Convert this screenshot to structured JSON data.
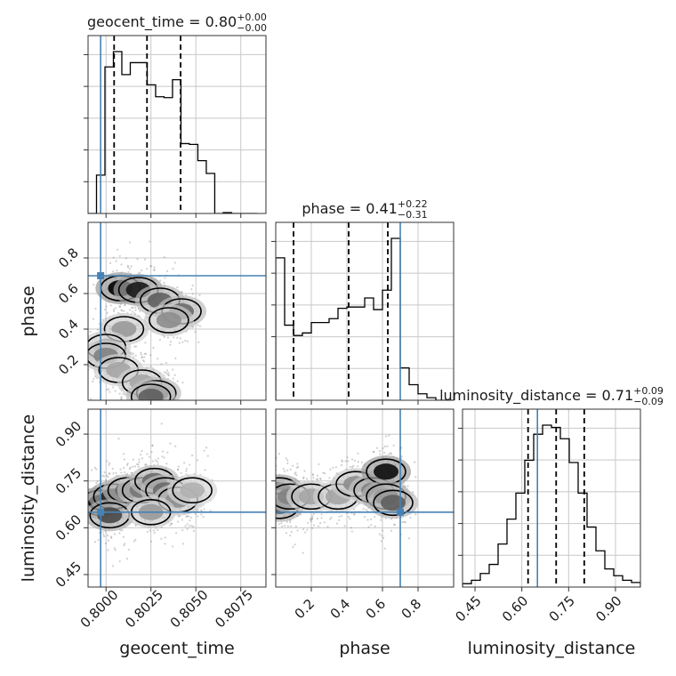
{
  "chart_data": {
    "type": "corner",
    "parameters": [
      "geocent_time",
      "phase",
      "luminosity_distance"
    ],
    "truths": {
      "geocent_time": 0.7997,
      "phase": 0.7,
      "luminosity_distance": 0.65
    },
    "colors": {
      "truth": "#4682b4",
      "hist": "#000000",
      "grid": "#c8c8c8"
    },
    "axes": {
      "geocent_time": {
        "label": "geocent_time",
        "range": [
          0.799,
          0.8089
        ],
        "ticks": [
          0.8,
          0.8025,
          0.805,
          0.8075
        ],
        "tick_labels": [
          "0.8000",
          "0.8025",
          "0.8050",
          "0.8075"
        ]
      },
      "phase": {
        "label": "phase",
        "range": [
          0.0,
          1.0
        ],
        "ticks": [
          0.2,
          0.4,
          0.6,
          0.8
        ],
        "tick_labels": [
          "0.2",
          "0.4",
          "0.6",
          "0.8"
        ]
      },
      "luminosity_distance": {
        "label": "luminosity_distance",
        "range": [
          0.41,
          0.98
        ],
        "ticks": [
          0.45,
          0.6,
          0.75,
          0.9
        ],
        "tick_labels": [
          "0.45",
          "0.60",
          "0.75",
          "0.90"
        ]
      }
    },
    "marginals": [
      {
        "param": "geocent_time",
        "title_name": "geocent_time",
        "median": "0.80",
        "plus": "+0.00",
        "minus": "−0.00",
        "quantiles": [
          0.80045,
          0.80228,
          0.80415
        ],
        "bins": [
          0.799,
          0.79947,
          0.79994,
          0.80041,
          0.80088,
          0.80135,
          0.80182,
          0.80229,
          0.80276,
          0.80323,
          0.8037,
          0.80417,
          0.80464,
          0.80511,
          0.80558,
          0.80605,
          0.80652,
          0.80699,
          0.80746,
          0.80793,
          0.8084
        ],
        "counts": [
          0,
          45,
          172,
          190,
          163,
          177,
          177,
          151,
          137,
          136,
          157,
          82,
          81,
          62,
          47,
          0,
          1,
          0,
          0,
          0
        ]
      },
      {
        "param": "phase",
        "title_name": "phase",
        "median": "0.41",
        "plus": "+0.22",
        "minus": "−0.31",
        "quantiles": [
          0.1,
          0.41,
          0.63
        ],
        "bins": [
          0.0,
          0.05,
          0.1,
          0.15,
          0.2,
          0.25,
          0.3,
          0.35,
          0.4,
          0.45,
          0.5,
          0.55,
          0.6,
          0.65,
          0.7,
          0.75,
          0.8,
          0.85,
          0.9,
          0.95,
          1.0
        ],
        "counts": [
          110,
          58,
          50,
          52,
          60,
          60,
          63,
          71,
          72,
          72,
          79,
          70,
          85,
          125,
          25,
          12,
          5,
          2,
          0,
          0
        ]
      },
      {
        "param": "luminosity_distance",
        "title_name": "luminosity_distance",
        "median": "0.71",
        "plus": "+0.09",
        "minus": "−0.09",
        "quantiles": [
          0.62,
          0.71,
          0.8
        ],
        "bins": [
          0.41,
          0.4385,
          0.467,
          0.4955,
          0.524,
          0.5525,
          0.581,
          0.6095,
          0.638,
          0.6665,
          0.695,
          0.7235,
          0.752,
          0.7805,
          0.809,
          0.8375,
          0.866,
          0.8945,
          0.923,
          0.9515,
          0.98
        ],
        "counts": [
          3,
          6,
          12,
          20,
          38,
          60,
          83,
          112,
          135,
          143,
          141,
          131,
          110,
          83,
          53,
          32,
          16,
          10,
          6,
          4
        ]
      }
    ],
    "density_panels": [
      {
        "x": "geocent_time",
        "y": "phase",
        "cells": [
          {
            "x": 0.8008,
            "y": 0.63,
            "v": 1.0
          },
          {
            "x": 0.8018,
            "y": 0.62,
            "v": 0.9
          },
          {
            "x": 0.803,
            "y": 0.56,
            "v": 0.6
          },
          {
            "x": 0.8042,
            "y": 0.5,
            "v": 0.55
          },
          {
            "x": 0.8035,
            "y": 0.45,
            "v": 0.4
          },
          {
            "x": 0.801,
            "y": 0.4,
            "v": 0.35
          },
          {
            "x": 0.8,
            "y": 0.3,
            "v": 0.3
          },
          {
            "x": 0.8,
            "y": 0.25,
            "v": 0.45
          },
          {
            "x": 0.8007,
            "y": 0.17,
            "v": 0.3
          },
          {
            "x": 0.802,
            "y": 0.1,
            "v": 0.3
          },
          {
            "x": 0.8028,
            "y": 0.04,
            "v": 0.55
          },
          {
            "x": 0.8025,
            "y": 0.02,
            "v": 0.6
          }
        ]
      },
      {
        "x": "geocent_time",
        "y": "luminosity_distance",
        "cells": [
          {
            "x": 0.7997,
            "y": 0.68,
            "v": 1.0
          },
          {
            "x": 0.8004,
            "y": 0.7,
            "v": 0.85
          },
          {
            "x": 0.8012,
            "y": 0.72,
            "v": 0.6
          },
          {
            "x": 0.802,
            "y": 0.72,
            "v": 0.5
          },
          {
            "x": 0.8027,
            "y": 0.75,
            "v": 0.55
          },
          {
            "x": 0.8033,
            "y": 0.72,
            "v": 0.55
          },
          {
            "x": 0.804,
            "y": 0.69,
            "v": 0.4
          },
          {
            "x": 0.8002,
            "y": 0.64,
            "v": 0.7
          },
          {
            "x": 0.8025,
            "y": 0.65,
            "v": 0.35
          },
          {
            "x": 0.8048,
            "y": 0.72,
            "v": 0.25
          }
        ]
      },
      {
        "x": "phase",
        "y": "luminosity_distance",
        "cells": [
          {
            "x": 0.02,
            "y": 0.72,
            "v": 0.85
          },
          {
            "x": 0.02,
            "y": 0.67,
            "v": 0.7
          },
          {
            "x": 0.08,
            "y": 0.7,
            "v": 0.45
          },
          {
            "x": 0.2,
            "y": 0.7,
            "v": 0.3
          },
          {
            "x": 0.35,
            "y": 0.7,
            "v": 0.3
          },
          {
            "x": 0.45,
            "y": 0.74,
            "v": 0.4
          },
          {
            "x": 0.55,
            "y": 0.72,
            "v": 0.45
          },
          {
            "x": 0.62,
            "y": 0.78,
            "v": 0.95
          },
          {
            "x": 0.62,
            "y": 0.7,
            "v": 0.7
          },
          {
            "x": 0.66,
            "y": 0.68,
            "v": 0.6
          }
        ]
      }
    ]
  }
}
